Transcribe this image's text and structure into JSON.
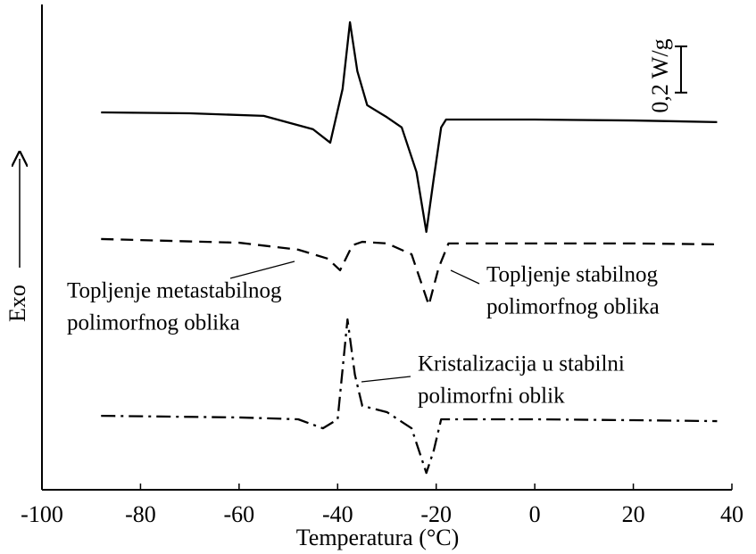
{
  "chart_data": {
    "type": "line",
    "xlabel": "Temperatura (°C)",
    "ylabel": "Exo",
    "xlim": [
      -100,
      40
    ],
    "xticks": [
      -100,
      -80,
      -60,
      -40,
      -20,
      0,
      20,
      40
    ],
    "ylim": [
      0,
      2.1
    ],
    "series": [
      {
        "color": "#000000",
        "dash": "solid",
        "x": [
          -88,
          -70,
          -55,
          -45,
          -41.5,
          -39,
          -37.5,
          -36,
          -34,
          -30,
          -27,
          -24,
          -22,
          -20.5,
          -19,
          -18,
          0,
          20,
          37
        ],
        "values": [
          1.633,
          1.629,
          1.618,
          1.56,
          1.502,
          1.734,
          2.023,
          1.811,
          1.664,
          1.612,
          1.568,
          1.375,
          1.116,
          1.347,
          1.568,
          1.602,
          1.602,
          1.598,
          1.591
        ]
      },
      {
        "color": "#000000",
        "dash": "dashed",
        "x": [
          -88,
          -60,
          -48,
          -42,
          -39.5,
          -37,
          -35,
          -30,
          -25,
          -21.5,
          -19.5,
          -17.5,
          0,
          20,
          37
        ],
        "values": [
          1.085,
          1.069,
          1.039,
          1.0,
          0.95,
          1.058,
          1.073,
          1.066,
          1.019,
          0.799,
          0.961,
          1.066,
          1.066,
          1.066,
          1.062
        ]
      },
      {
        "color": "#000000",
        "dash": "dashdot",
        "x": [
          -88,
          -60,
          -48,
          -43,
          -40,
          -38,
          -36.5,
          -35,
          -30,
          -25,
          -22,
          -20.5,
          -19,
          -17,
          0,
          20,
          37
        ],
        "values": [
          0.32,
          0.313,
          0.305,
          0.266,
          0.305,
          0.737,
          0.498,
          0.363,
          0.336,
          0.266,
          0.073,
          0.17,
          0.305,
          0.305,
          0.305,
          0.301,
          0.297
        ]
      }
    ],
    "scale_bar": {
      "label": "0,2 W/g",
      "value": 0.2
    },
    "annotations": [
      {
        "lines": [
          "Topljenje metastabilnog",
          "polimorfnog oblika"
        ]
      },
      {
        "lines": [
          "Topljenje stabilnog",
          "polimorfnog oblika"
        ]
      },
      {
        "lines": [
          "Kristalizacija u stabilni",
          "polimorfni oblik"
        ]
      }
    ]
  }
}
